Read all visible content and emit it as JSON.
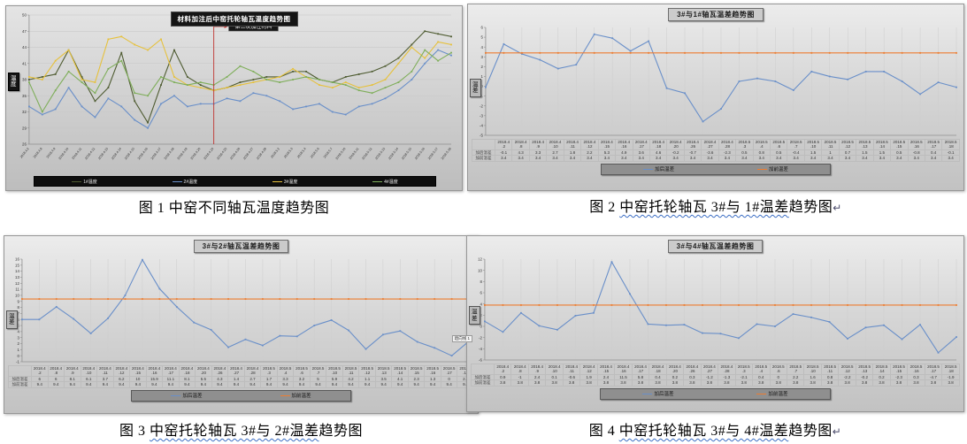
{
  "figure_captions": [
    {
      "prefix": "图 1 ",
      "wavy": "",
      "rest": "中窑不同轴瓦温度趋势图",
      "eol": ""
    },
    {
      "prefix": "图 2 ",
      "wavy": "中窑托轮轴瓦 3#与 1#温差",
      "rest": "趋势图",
      "eol": "↵"
    },
    {
      "prefix": "图 3 ",
      "wavy": "中窑托轮轴瓦 3#与 2#温差",
      "rest": "趋势图",
      "eol": ""
    },
    {
      "prefix": "图 4 ",
      "wavy": "中窑托轮轴瓦 3#与 4#温差",
      "rest": "趋势图",
      "eol": "↵"
    }
  ],
  "colors": {
    "series_blue": "#698fc9",
    "series_orange": "#ed7d31",
    "series_yellow": "#e6c13c",
    "series_green": "#7fae5a",
    "series_dark_olive": "#4e5b31",
    "annotation_red": "#bf3330"
  },
  "chart_data": [
    {
      "id": "chart1",
      "type": "line",
      "title": "材料加注后中窑托轮轴瓦温度趋势图",
      "ylabel": "温度",
      "ylim": [
        26,
        50
      ],
      "ytick_step": 3,
      "grid": "h",
      "legend_position": "bottom",
      "annotation": {
        "text": "第三次加注材料",
        "index": 14
      },
      "x": [
        "2018.4.2",
        "2018.4.8",
        "2018.4.9",
        "2018.4.10",
        "2018.4.11",
        "2018.4.12",
        "2018.4.13",
        "2018.4.14",
        "2018.4.15",
        "2018.4.16",
        "2018.4.17",
        "2018.4.18",
        "2018.4.19",
        "2018.4.20",
        "2018.4.24",
        "2018.4.25",
        "2018.4.26",
        "2018.4.27",
        "2018.4.28",
        "2018.5.2",
        "2018.5.3",
        "2018.5.4",
        "2018.5.6",
        "2018.5.7",
        "2018.5.10",
        "2018.5.11",
        "2018.5.12",
        "2018.5.13",
        "2018.5.14",
        "2018.5.15",
        "2018.5.16",
        "2018.5.17",
        "2018.5.18"
      ],
      "series": [
        {
          "name": "1#温度",
          "color": "#4e5b31",
          "values": [
            38,
            38.5,
            39,
            43.5,
            38.5,
            34,
            36.5,
            43,
            34,
            30,
            37,
            43.5,
            38.5,
            37,
            36,
            36.5,
            37.5,
            38,
            38.5,
            38.5,
            39.5,
            39.5,
            38,
            37.5,
            38.5,
            39,
            39.5,
            40.5,
            42,
            44.5,
            47,
            46.5,
            46
          ]
        },
        {
          "name": "2#温度",
          "color": "#698fc9",
          "values": [
            33,
            31.5,
            32.5,
            36.5,
            33,
            31,
            34.5,
            33,
            30.5,
            29,
            33.5,
            35,
            33,
            33.5,
            33.5,
            34.5,
            34,
            35.5,
            35,
            34,
            32.5,
            33,
            33.5,
            32,
            31.5,
            33,
            33.5,
            34.5,
            36,
            38,
            41,
            43.5,
            42.5
          ]
        },
        {
          "name": "3#温度",
          "color": "#e6c13c",
          "values": [
            38.5,
            38,
            41.5,
            43.5,
            38,
            37.5,
            45.5,
            46,
            44.5,
            43.5,
            45.5,
            38.5,
            37,
            36.5,
            36,
            36.5,
            37,
            37.5,
            38,
            38.5,
            40,
            38.5,
            37,
            36.5,
            37.5,
            36.5,
            37,
            38,
            41,
            44,
            42,
            45,
            44.5
          ]
        },
        {
          "name": "4#温度",
          "color": "#7fae5a",
          "values": [
            37.5,
            32,
            36,
            39.5,
            37.5,
            35.5,
            40,
            41.5,
            35.5,
            35,
            38.5,
            37.5,
            37,
            37.5,
            37,
            38.5,
            40.5,
            39.5,
            38,
            37.5,
            38,
            38.5,
            38,
            37.5,
            37,
            36,
            35.5,
            36.5,
            37.5,
            39.5,
            43.5,
            41.5,
            43
          ]
        }
      ]
    },
    {
      "id": "chart2",
      "type": "line",
      "title": "3#与1#轴瓦温差趋势图",
      "ylabel": "温差",
      "ylim": [
        -5,
        6
      ],
      "ytick_step": 1,
      "grid": "v",
      "legend_position": "bottom",
      "x": [
        "2018.4.2",
        "2018.4.8",
        "2018.4.9",
        "2018.4.10",
        "2018.4.11",
        "2018.4.12",
        "2018.4.15",
        "2018.4.16",
        "2018.4.17",
        "2018.4.18",
        "2018.4.20",
        "2018.4.26",
        "2018.4.27",
        "2018.4.28",
        "2018.5.3",
        "2018.5.4",
        "2018.5.6",
        "2018.5.7",
        "2018.5.10",
        "2018.5.11",
        "2018.5.12",
        "2018.5.13",
        "2018.5.14",
        "2018.5.15",
        "2018.5.16",
        "2018.5.17",
        "2018.5.18"
      ],
      "table_row_labels": [
        "加后温差",
        "加前温差"
      ],
      "series": [
        {
          "name": "加后温差",
          "color": "#698fc9",
          "values": [
            -0.1,
            4.3,
            3.3,
            2.7,
            1.8,
            2.2,
            5.3,
            4.9,
            3.6,
            4.6,
            -0.2,
            -0.7,
            -3.6,
            -2.3,
            0.5,
            0.8,
            0.5,
            -0.4,
            1.5,
            1,
            0.7,
            1.5,
            1.5,
            0.5,
            -0.8,
            0.4,
            -0.1
          ]
        },
        {
          "name": "加前温差",
          "color": "#ed7d31",
          "values": [
            3.4,
            3.4,
            3.4,
            3.4,
            3.4,
            3.4,
            3.4,
            3.4,
            3.4,
            3.4,
            3.4,
            3.4,
            3.4,
            3.4,
            3.4,
            3.4,
            3.4,
            3.4,
            3.4,
            3.4,
            3.4,
            3.4,
            3.4,
            3.4,
            3.4,
            3.4,
            3.4
          ]
        }
      ]
    },
    {
      "id": "chart3",
      "type": "line",
      "title": "3#与2#轴瓦温差趋势图",
      "ylabel": "温差",
      "ylim": [
        -1,
        16
      ],
      "ytick_step": 1,
      "grid": "v",
      "legend_position": "bottom",
      "right_note": "趋向线 1",
      "x": [
        "2018.4.2",
        "2018.4.8",
        "2018.4.9",
        "2018.4.10",
        "2018.4.11",
        "2018.4.12",
        "2018.4.15",
        "2018.4.16",
        "2018.4.17",
        "2018.4.18",
        "2018.4.20",
        "2018.4.26",
        "2018.4.27",
        "2018.4.28",
        "2018.5.3",
        "2018.5.4",
        "2018.5.6",
        "2018.5.7",
        "2018.5.10",
        "2018.5.11",
        "2018.5.12",
        "2018.5.13",
        "2018.5.14",
        "2018.5.15",
        "2018.5.16",
        "2018.5.17",
        "2018.5.18"
      ],
      "table_row_labels": [
        "加后温差",
        "加前温差"
      ],
      "series": [
        {
          "name": "加后温差",
          "color": "#698fc9",
          "values": [
            6,
            6,
            8.1,
            6.1,
            3.7,
            6.2,
            10,
            15.9,
            11.1,
            8.1,
            5.5,
            4.3,
            1.4,
            2.7,
            1.7,
            3.3,
            3.2,
            5,
            5.9,
            4.2,
            1.1,
            3.5,
            4.1,
            2.3,
            1.3,
            0,
            2.4
          ]
        },
        {
          "name": "加前温差",
          "color": "#ed7d31",
          "values": [
            9.4,
            9.4,
            9.4,
            9.4,
            9.4,
            9.4,
            9.4,
            9.4,
            9.4,
            9.4,
            9.4,
            9.4,
            9.4,
            9.4,
            9.4,
            9.4,
            9.4,
            9.4,
            9.4,
            9.4,
            9.4,
            9.4,
            9.4,
            9.4,
            9.4,
            9.4,
            9.4
          ]
        }
      ]
    },
    {
      "id": "chart4",
      "type": "line",
      "title": "3#与4#轴瓦温差趋势图",
      "ylabel": "温差",
      "ylim": [
        -6,
        12
      ],
      "ytick_step": 2,
      "grid": "v",
      "legend_position": "bottom",
      "x": [
        "2018.4.2",
        "2018.4.8",
        "2018.4.9",
        "2018.4.10",
        "2018.4.11",
        "2018.4.12",
        "2018.4.15",
        "2018.4.16",
        "2018.4.17",
        "2018.4.18",
        "2018.4.20",
        "2018.4.26",
        "2018.4.27",
        "2018.4.28",
        "2018.5.3",
        "2018.5.4",
        "2018.5.6",
        "2018.5.7",
        "2018.5.10",
        "2018.5.11",
        "2018.5.12",
        "2018.5.13",
        "2018.5.14",
        "2018.5.15",
        "2018.5.16",
        "2018.5.17",
        "2018.5.18"
      ],
      "table_row_labels": [
        "加后温差",
        "加前温差"
      ],
      "series": [
        {
          "name": "加后温差",
          "color": "#698fc9",
          "values": [
            0.9,
            -1,
            2.4,
            0.1,
            -0.6,
            1.9,
            2.4,
            11.5,
            5.8,
            0.4,
            0.2,
            0.3,
            -1.2,
            -1.3,
            -2.1,
            0.4,
            0,
            2.2,
            1.6,
            0.8,
            -2.2,
            -0.2,
            0.2,
            -2.3,
            0.3,
            -4.7,
            -1.9
          ]
        },
        {
          "name": "加前温差",
          "color": "#ed7d31",
          "values": [
            3.8,
            3.8,
            3.8,
            3.8,
            3.8,
            3.8,
            3.8,
            3.8,
            3.8,
            3.8,
            3.8,
            3.8,
            3.8,
            3.8,
            3.8,
            3.8,
            3.8,
            3.8,
            3.8,
            3.8,
            3.8,
            3.8,
            3.8,
            3.8,
            3.8,
            3.8,
            3.8
          ]
        }
      ]
    }
  ]
}
